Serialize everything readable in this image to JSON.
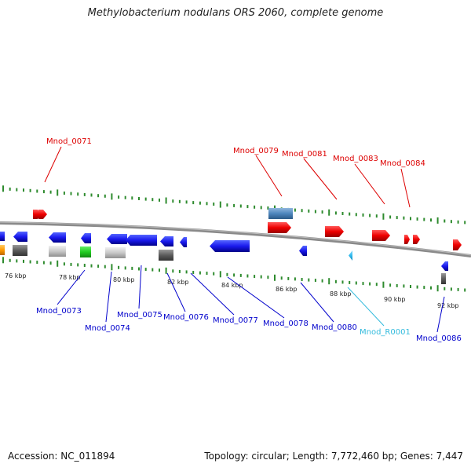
{
  "title": "Methylobacterium nodulans ORS 2060, complete genome",
  "footer": {
    "accession": "Accession: NC_011894",
    "info": "Topology: circular; Length: 7,772,460 bp; Genes: 7,447"
  },
  "colors": {
    "plus_strand": "#dd0000",
    "minus_strand": "#0000cc",
    "rna": "#33bbdd",
    "tick": "#2e8b2e",
    "backbone": "#888888"
  },
  "kbp_labels": [
    "76 kbp",
    "78 kbp",
    "80 kbp",
    "82 kbp",
    "84 kbp",
    "86 kbp",
    "88 kbp",
    "90 kbp",
    "92 kbp"
  ],
  "top_labels": [
    "Mnod_0071",
    "Mnod_0079",
    "Mnod_0081",
    "Mnod_0083",
    "Mnod_0084"
  ],
  "bottom_labels": [
    "Mnod_0073",
    "Mnod_0074",
    "Mnod_0075",
    "Mnod_0076",
    "Mnod_0077",
    "Mnod_0078",
    "Mnod_0080",
    "Mnod_R0001",
    "Mnod_0086"
  ]
}
